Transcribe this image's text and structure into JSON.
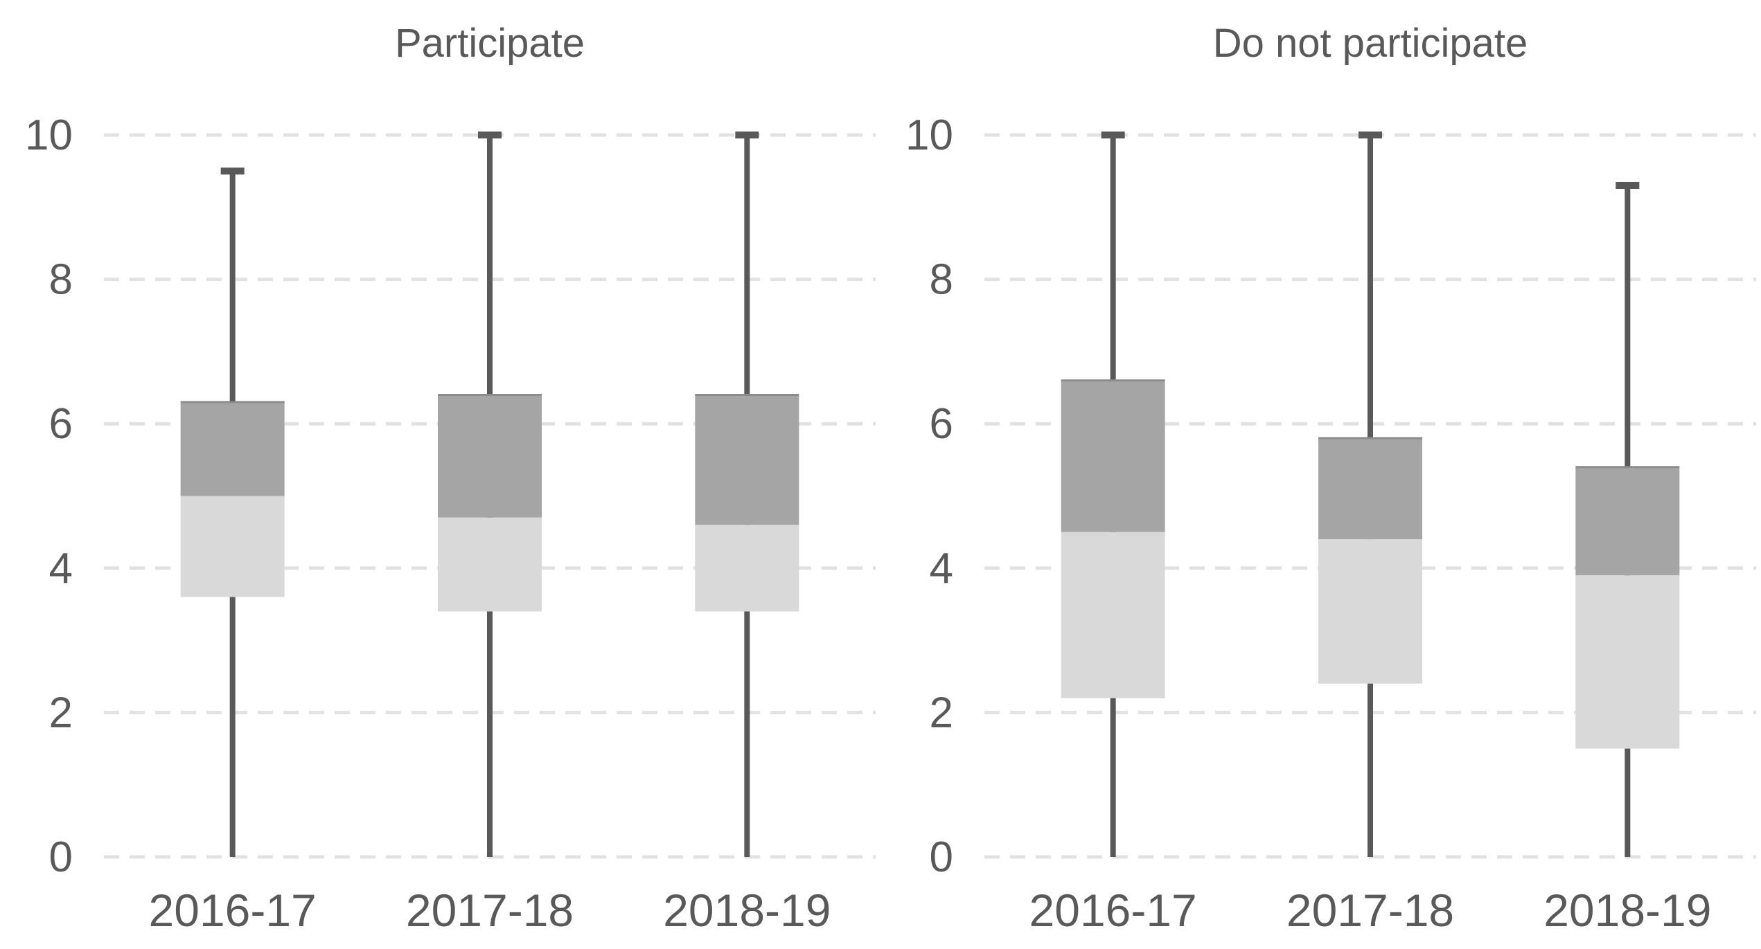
{
  "chart_data": [
    {
      "type": "boxplot",
      "title": "Participate",
      "categories": [
        "2016-17",
        "2017-18",
        "2018-19"
      ],
      "yticks": [
        0,
        2,
        4,
        6,
        8,
        10
      ],
      "ylim": [
        0,
        10
      ],
      "grid": "horizontal-dashed",
      "legend": "none",
      "series": [
        {
          "category": "2016-17",
          "min": 0,
          "q1": 3.6,
          "median": 5.0,
          "q3": 6.3,
          "max": 9.5
        },
        {
          "category": "2017-18",
          "min": 0,
          "q1": 3.4,
          "median": 4.7,
          "q3": 6.4,
          "max": 10
        },
        {
          "category": "2018-19",
          "min": 0,
          "q1": 3.4,
          "median": 4.6,
          "q3": 6.4,
          "max": 10
        }
      ]
    },
    {
      "type": "boxplot",
      "title": "Do not participate",
      "categories": [
        "2016-17",
        "2017-18",
        "2018-19"
      ],
      "yticks": [
        0,
        2,
        4,
        6,
        8,
        10
      ],
      "ylim": [
        0,
        10
      ],
      "grid": "horizontal-dashed",
      "legend": "none",
      "series": [
        {
          "category": "2016-17",
          "min": 0,
          "q1": 2.2,
          "median": 4.5,
          "q3": 6.6,
          "max": 10
        },
        {
          "category": "2017-18",
          "min": 0,
          "q1": 2.4,
          "median": 4.4,
          "q3": 5.8,
          "max": 10
        },
        {
          "category": "2018-19",
          "min": 0,
          "q1": 1.5,
          "median": 3.9,
          "q3": 5.4,
          "max": 9.3
        }
      ]
    }
  ],
  "colors": {
    "background": "#ffffff",
    "box_upper": "#a5a5a5",
    "box_lower": "#d9d9d9",
    "box_top_edge": "#8c8c8c",
    "whisker": "#595959",
    "gridline": "#e2e2e2",
    "text": "#595959"
  }
}
